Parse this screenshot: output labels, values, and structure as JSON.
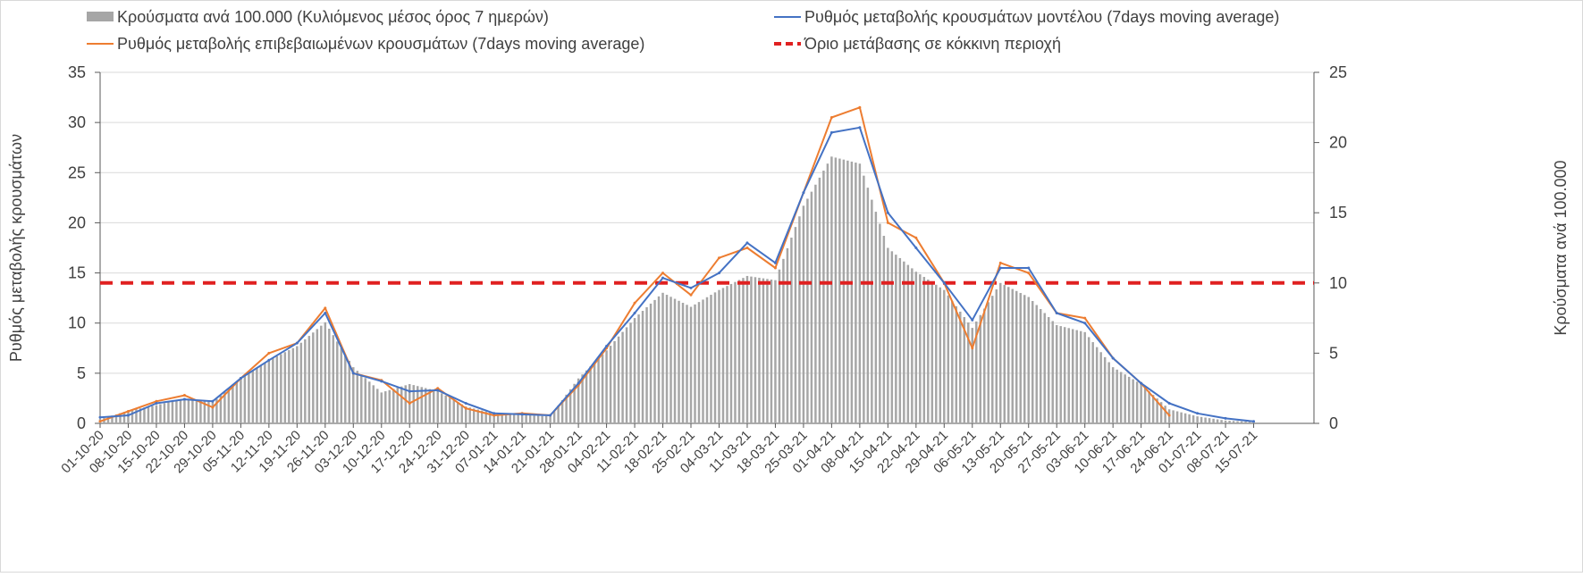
{
  "chart_data": {
    "type": "bar",
    "legend": {
      "placement": "top",
      "entries": [
        "Κρούσματα ανά 100.000 (Κυλιόμενος μέσος όρος 7 ημερών)",
        "Ρυθμός μεταβολής κρουσμάτων μοντέλου (7days moving average)",
        "Ρυθμός μεταβολής επιβεβαιωμένων κρουσμάτων (7days moving average)",
        "Όριο μετάβασης σε κόκκινη περιοχή"
      ]
    },
    "ylabel_left": "Ρυθμός μεταβολής κρουσμάτων",
    "ylabel_right": "Κρούσματα ανά 100.000",
    "ylim_left": [
      0,
      35
    ],
    "yticks_left": [
      0,
      5,
      10,
      15,
      20,
      25,
      30,
      35
    ],
    "ylim_right": [
      0,
      25
    ],
    "yticks_right": [
      0,
      5,
      10,
      15,
      20,
      25
    ],
    "x_tick_labels": [
      "01-10-20",
      "08-10-20",
      "15-10-20",
      "22-10-20",
      "29-10-20",
      "05-11-20",
      "12-11-20",
      "19-11-20",
      "26-11-20",
      "03-12-20",
      "10-12-20",
      "17-12-20",
      "24-12-20",
      "31-12-20",
      "07-01-21",
      "14-01-21",
      "21-01-21",
      "28-01-21",
      "04-02-21",
      "11-02-21",
      "18-02-21",
      "25-02-21",
      "04-03-21",
      "11-03-21",
      "18-03-21",
      "25-03-21",
      "01-04-21",
      "08-04-21",
      "15-04-21",
      "22-04-21",
      "29-04-21",
      "06-05-21",
      "13-05-21",
      "20-05-21",
      "27-05-21",
      "03-06-21",
      "10-06-21",
      "17-06-21",
      "24-06-21",
      "01-07-21",
      "08-07-21",
      "15-07-21"
    ],
    "grid": true,
    "colors": {
      "bars": "#a6a6a6",
      "model_line": "#4472c4",
      "confirmed_line": "#ed7d31",
      "threshold": "#e02020",
      "grid": "#d9d9d9"
    },
    "series": [
      {
        "name": "Κρούσματα ανά 100.000 (Κυλιόμενος μέσος όρος 7 ημερών)",
        "type": "bar",
        "axis": "right",
        "x_dates": [
          "01-10-20",
          "08-10-20",
          "15-10-20",
          "22-10-20",
          "29-10-20",
          "05-11-20",
          "12-11-20",
          "19-11-20",
          "26-11-20",
          "03-12-20",
          "10-12-20",
          "17-12-20",
          "24-12-20",
          "31-12-20",
          "07-01-21",
          "14-01-21",
          "21-01-21",
          "28-01-21",
          "04-02-21",
          "11-02-21",
          "18-02-21",
          "25-02-21",
          "04-03-21",
          "11-03-21",
          "18-03-21",
          "25-03-21",
          "01-04-21",
          "08-04-21",
          "15-04-21",
          "22-04-21",
          "29-04-21",
          "06-05-21",
          "13-05-21",
          "20-05-21",
          "27-05-21",
          "03-06-21",
          "10-06-21",
          "17-06-21",
          "24-06-21",
          "01-07-21",
          "08-07-21",
          "15-07-21"
        ],
        "values": [
          0.3,
          0.9,
          1.3,
          1.8,
          1.5,
          3.2,
          4.5,
          5.5,
          7.2,
          4.0,
          2.2,
          2.8,
          2.3,
          1.2,
          0.7,
          0.6,
          0.5,
          3.2,
          5.2,
          7.5,
          9.3,
          8.3,
          9.5,
          10.5,
          10.2,
          15.5,
          19.0,
          18.5,
          12.5,
          10.8,
          9.5,
          6.8,
          10.0,
          9.0,
          7.0,
          6.5,
          4.0,
          2.8,
          1.0,
          0.5,
          0.2,
          0.1
        ]
      },
      {
        "name": "Ρυθμός μεταβολής κρουσμάτων μοντέλου (7days moving average)",
        "type": "line",
        "axis": "left",
        "x_dates": [
          "01-10-20",
          "08-10-20",
          "15-10-20",
          "22-10-20",
          "29-10-20",
          "05-11-20",
          "12-11-20",
          "19-11-20",
          "26-11-20",
          "03-12-20",
          "10-12-20",
          "17-12-20",
          "24-12-20",
          "31-12-20",
          "07-01-21",
          "14-01-21",
          "21-01-21",
          "28-01-21",
          "04-02-21",
          "11-02-21",
          "18-02-21",
          "25-02-21",
          "04-03-21",
          "11-03-21",
          "18-03-21",
          "25-03-21",
          "01-04-21",
          "08-04-21",
          "15-04-21",
          "22-04-21",
          "29-04-21",
          "06-05-21",
          "13-05-21",
          "20-05-21",
          "27-05-21",
          "03-06-21",
          "10-06-21",
          "17-06-21",
          "24-06-21",
          "01-07-21",
          "08-07-21",
          "15-07-21"
        ],
        "values": [
          0.6,
          0.8,
          2.0,
          2.4,
          2.2,
          4.5,
          6.3,
          8.0,
          11.0,
          5.0,
          4.2,
          3.2,
          3.3,
          2.0,
          1.0,
          0.9,
          0.8,
          4.0,
          7.7,
          11.0,
          14.5,
          13.5,
          15.0,
          18.0,
          16.0,
          23.0,
          29.0,
          29.5,
          21.0,
          17.5,
          14.0,
          10.3,
          15.5,
          15.5,
          11.0,
          10.0,
          6.5,
          4.0,
          2.0,
          1.0,
          0.5,
          0.2
        ]
      },
      {
        "name": "Ρυθμός μεταβολής επιβεβαιωμένων κρουσμάτων (7days moving average)",
        "type": "line",
        "axis": "left",
        "x_dates": [
          "01-10-20",
          "08-10-20",
          "15-10-20",
          "22-10-20",
          "29-10-20",
          "05-11-20",
          "12-11-20",
          "19-11-20",
          "26-11-20",
          "03-12-20",
          "10-12-20",
          "17-12-20",
          "24-12-20",
          "31-12-20",
          "07-01-21",
          "14-01-21",
          "21-01-21",
          "28-01-21",
          "04-02-21",
          "11-02-21",
          "18-02-21",
          "25-02-21",
          "04-03-21",
          "11-03-21",
          "18-03-21",
          "25-03-21",
          "01-04-21",
          "08-04-21",
          "15-04-21",
          "22-04-21",
          "29-04-21",
          "06-05-21",
          "13-05-21",
          "20-05-21",
          "27-05-21",
          "03-06-21",
          "10-06-21",
          "17-06-21",
          "24-06-21"
        ],
        "values": [
          0.2,
          1.2,
          2.2,
          2.8,
          1.6,
          4.5,
          7.0,
          8.0,
          11.5,
          5.0,
          4.3,
          2.0,
          3.5,
          1.5,
          0.8,
          1.0,
          0.8,
          3.8,
          7.5,
          12.0,
          15.0,
          12.8,
          16.5,
          17.5,
          15.5,
          23.0,
          30.5,
          31.5,
          20.0,
          18.5,
          14.0,
          7.5,
          16.0,
          15.0,
          11.0,
          10.5,
          6.5,
          4.0,
          0.8
        ]
      },
      {
        "name": "Όριο μετάβασης σε κόκκινη περιοχή",
        "type": "threshold",
        "axis": "right",
        "value": 10
      }
    ]
  }
}
